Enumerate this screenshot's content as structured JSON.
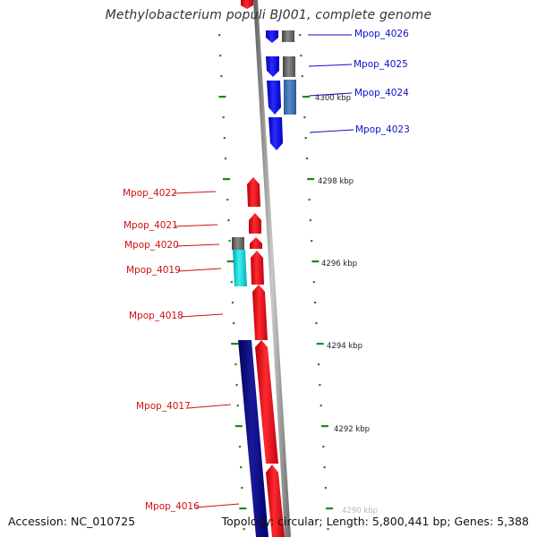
{
  "title": "Methylobacterium populi BJ001, complete genome",
  "footer": {
    "accession": "Accession: NC_010725",
    "topology": "Topology: circular; Length: 5,800,441 bp; Genes: 5,388"
  },
  "colors": {
    "forward_gene": "#e8101a",
    "reverse_gene": "#1a1ae0",
    "rna_gene": "#18c8d0",
    "other_feature": "#6a6a6a",
    "tick": "#1a8a1a",
    "backbone": "#888888"
  },
  "scale_labels": [
    "4300 kbp",
    "4298 kbp",
    "4296 kbp",
    "4294 kbp",
    "4292 kbp",
    "4290 kbp"
  ],
  "genes": [
    {
      "name": "Mpop_4026",
      "strand": "reverse"
    },
    {
      "name": "Mpop_4025",
      "strand": "reverse"
    },
    {
      "name": "Mpop_4024",
      "strand": "reverse"
    },
    {
      "name": "Mpop_4023",
      "strand": "reverse"
    },
    {
      "name": "Mpop_4022",
      "strand": "forward"
    },
    {
      "name": "Mpop_4021",
      "strand": "forward"
    },
    {
      "name": "Mpop_4020",
      "strand": "forward"
    },
    {
      "name": "Mpop_4019",
      "strand": "forward"
    },
    {
      "name": "Mpop_4018",
      "strand": "forward"
    },
    {
      "name": "Mpop_4017",
      "strand": "forward"
    },
    {
      "name": "Mpop_4016",
      "strand": "forward"
    }
  ]
}
